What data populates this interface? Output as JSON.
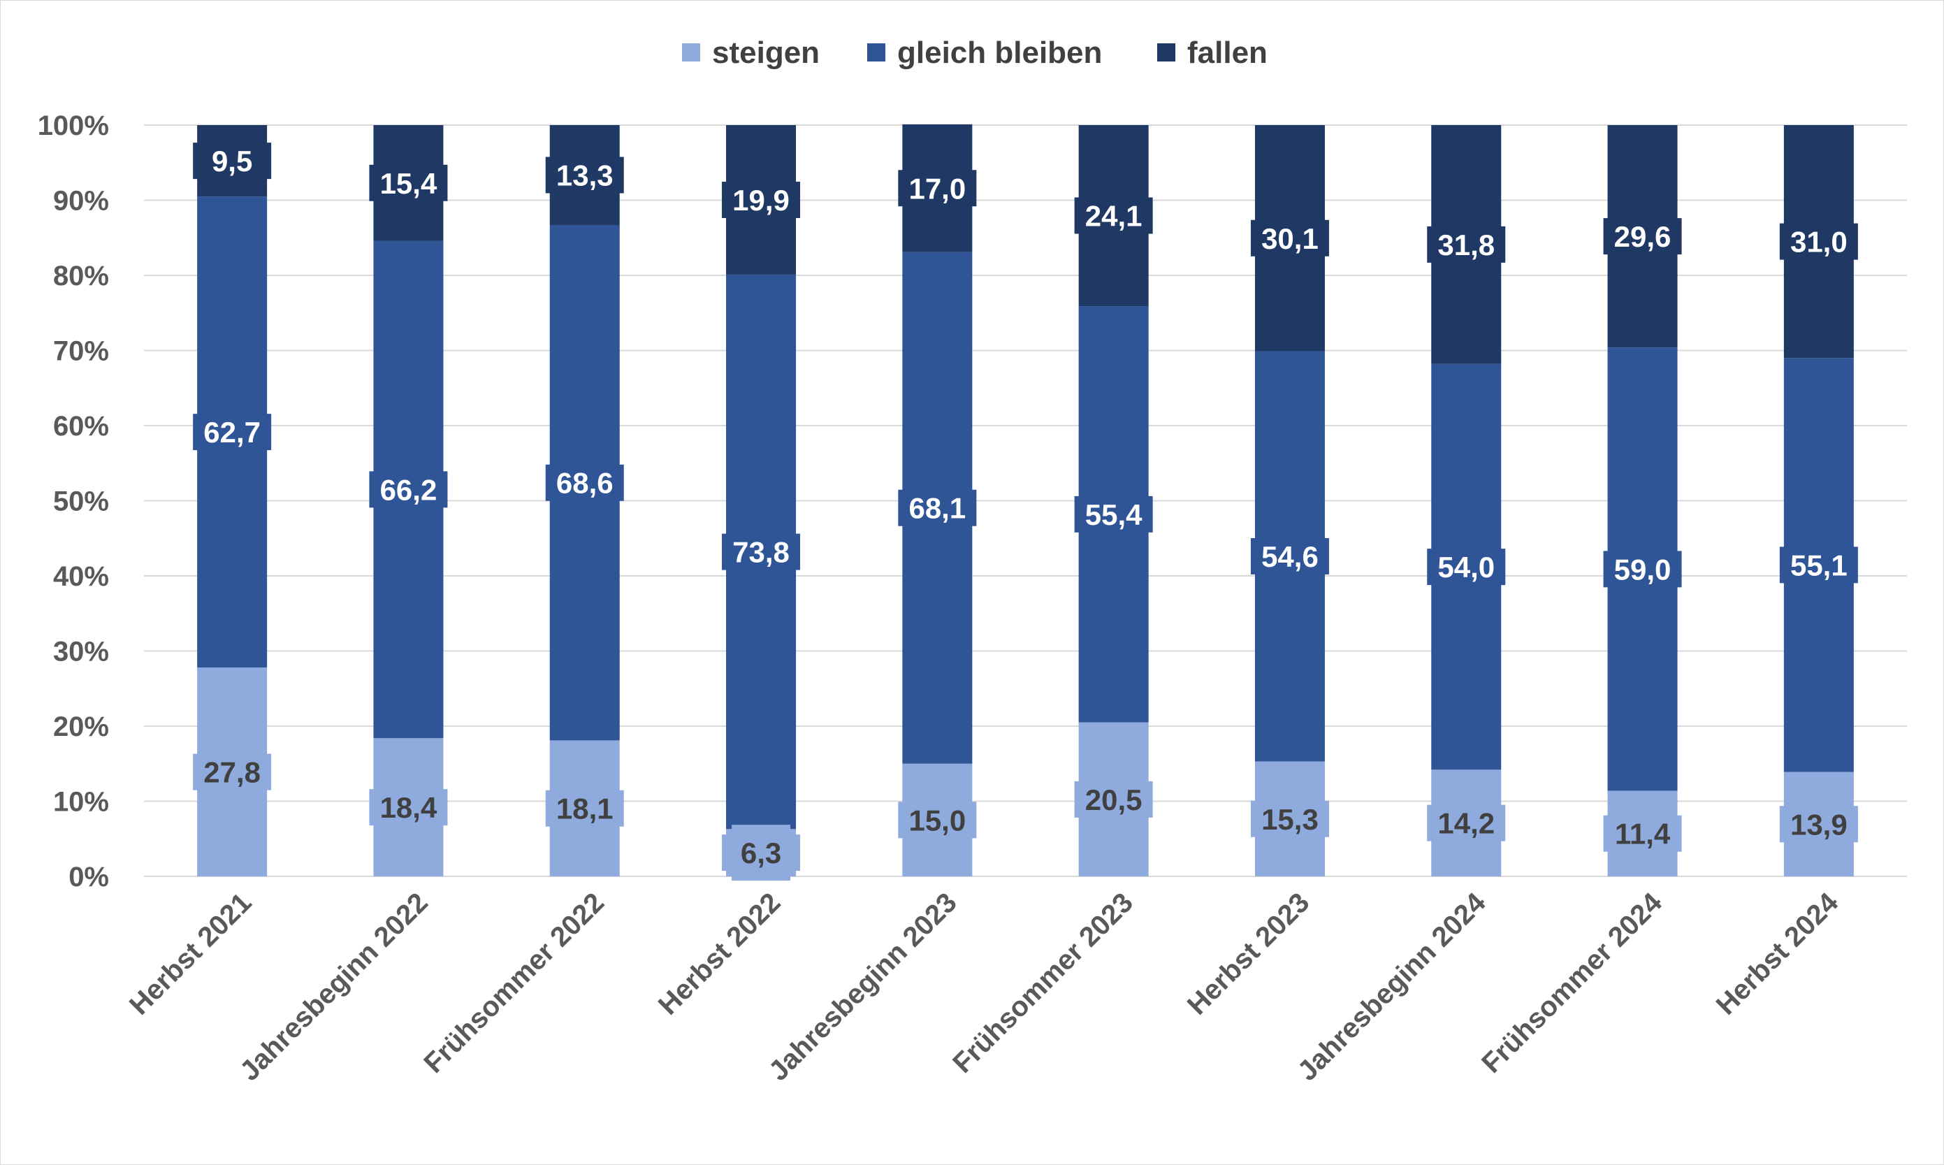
{
  "chart_data": {
    "type": "bar",
    "stacked": true,
    "percent_stacked": true,
    "categories": [
      "Herbst 2021",
      "Jahresbeginn 2022",
      "Frühsommer 2022",
      "Herbst 2022",
      "Jahresbeginn 2023",
      "Frühsommer 2023",
      "Herbst 2023",
      "Jahresbeginn 2024",
      "Frühsommer 2024",
      "Herbst 2024"
    ],
    "series": [
      {
        "name": "steigen",
        "color": "#8faadc",
        "label_color": "#404040",
        "values": [
          27.8,
          18.4,
          18.1,
          6.3,
          15.0,
          20.5,
          15.3,
          14.2,
          11.4,
          13.9
        ],
        "labels": [
          "27,8",
          "18,4",
          "18,1",
          "6,3",
          "15,0",
          "20,5",
          "15,3",
          "14,2",
          "11,4",
          "13,9"
        ]
      },
      {
        "name": "gleich bleiben",
        "color": "#2f5597",
        "label_color": "#ffffff",
        "values": [
          62.7,
          66.2,
          68.6,
          73.8,
          68.1,
          55.4,
          54.6,
          54.0,
          59.0,
          55.1
        ],
        "labels": [
          "62,7",
          "66,2",
          "68,6",
          "73,8",
          "68,1",
          "55,4",
          "54,6",
          "54,0",
          "59,0",
          "55,1"
        ]
      },
      {
        "name": "fallen",
        "color": "#203864",
        "label_color": "#ffffff",
        "values": [
          9.5,
          15.4,
          13.3,
          19.9,
          17.0,
          24.1,
          30.1,
          31.8,
          29.6,
          31.0
        ],
        "labels": [
          "9,5",
          "15,4",
          "13,3",
          "19,9",
          "17,0",
          "24,1",
          "30,1",
          "31,8",
          "29,6",
          "31,0"
        ]
      }
    ],
    "y_ticks": [
      "0%",
      "10%",
      "20%",
      "30%",
      "40%",
      "50%",
      "60%",
      "70%",
      "80%",
      "90%",
      "100%"
    ],
    "ylim": [
      0,
      100
    ],
    "grid": true,
    "legend_position": "top-center",
    "gridline_color": "#d9d9d9"
  }
}
